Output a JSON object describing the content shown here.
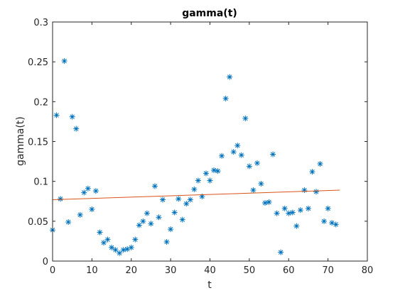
{
  "chart_data": {
    "type": "scatter",
    "title": "gamma(t)",
    "xlabel": "t",
    "ylabel": "gamma(t)",
    "xlim": [
      0,
      80
    ],
    "ylim": [
      0,
      0.3
    ],
    "xticks": [
      0,
      10,
      20,
      30,
      40,
      50,
      60,
      70,
      80
    ],
    "xtick_labels": [
      "0",
      "10",
      "20",
      "30",
      "40",
      "50",
      "60",
      "70",
      "80"
    ],
    "yticks": [
      0,
      0.05,
      0.1,
      0.15,
      0.2,
      0.25,
      0.3
    ],
    "ytick_labels": [
      "0",
      "0.05",
      "0.1",
      "0.15",
      "0.2",
      "0.25",
      "0.3"
    ],
    "grid": false,
    "box": true,
    "series": [
      {
        "marker": "asterisk",
        "color": "#0072BD",
        "x": [
          0,
          1,
          2,
          3,
          4,
          5,
          6,
          7,
          8,
          9,
          10,
          11,
          12,
          13,
          14,
          15,
          16,
          17,
          18,
          19,
          20,
          21,
          22,
          23,
          24,
          25,
          26,
          27,
          28,
          29,
          30,
          31,
          32,
          33,
          34,
          35,
          36,
          37,
          38,
          39,
          40,
          41,
          42,
          43,
          44,
          45,
          46,
          47,
          48,
          49,
          50,
          51,
          52,
          53,
          54,
          55,
          56,
          57,
          58,
          59,
          60,
          61,
          62,
          63,
          64,
          65,
          66,
          67,
          68,
          69,
          70,
          71,
          72
        ],
        "y": [
          0.039,
          0.183,
          0.078,
          0.251,
          0.049,
          0.181,
          0.166,
          0.058,
          0.086,
          0.091,
          0.065,
          0.088,
          0.036,
          0.023,
          0.027,
          0.017,
          0.014,
          0.01,
          0.014,
          0.015,
          0.017,
          0.027,
          0.045,
          0.05,
          0.06,
          0.047,
          0.094,
          0.055,
          0.077,
          0.024,
          0.04,
          0.061,
          0.078,
          0.052,
          0.072,
          0.077,
          0.09,
          0.101,
          0.081,
          0.11,
          0.101,
          0.114,
          0.113,
          0.132,
          0.204,
          0.231,
          0.137,
          0.145,
          0.133,
          0.179,
          0.119,
          0.089,
          0.123,
          0.097,
          0.073,
          0.074,
          0.134,
          0.06,
          0.011,
          0.066,
          0.06,
          0.061,
          0.044,
          0.064,
          0.089,
          0.066,
          0.112,
          0.087,
          0.122,
          0.05,
          0.066,
          0.048,
          0.046
        ]
      },
      {
        "marker": "line",
        "color": "#D95319",
        "x": [
          0,
          73
        ],
        "y": [
          0.077,
          0.089
        ]
      }
    ]
  }
}
